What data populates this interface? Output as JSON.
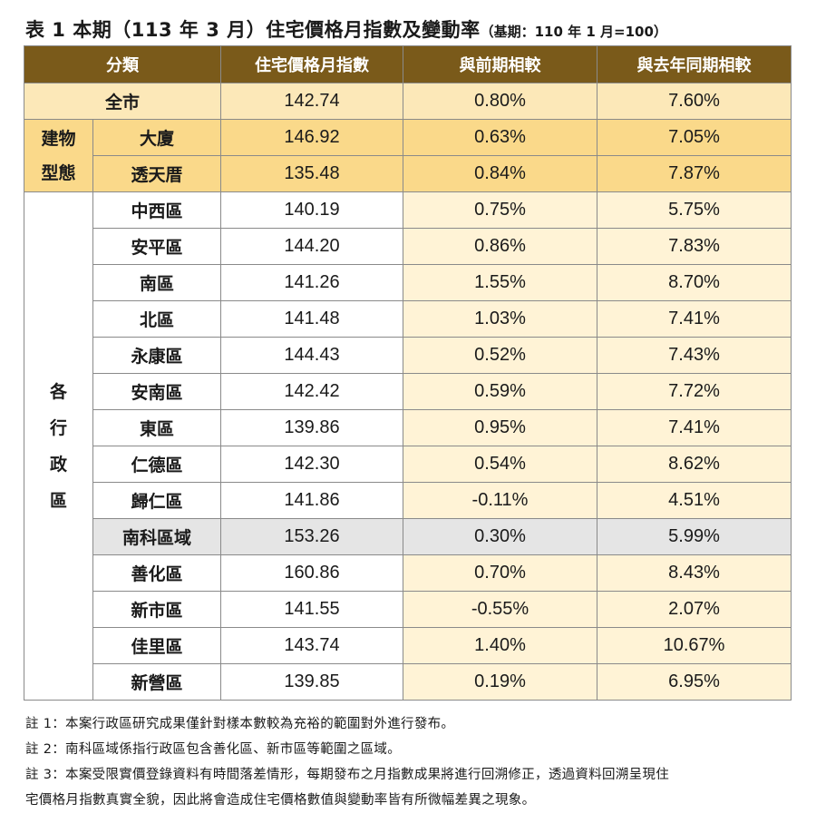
{
  "title": {
    "main": "表 1 本期（113 年 3 月）住宅價格月指數及變動率",
    "sub": "（基期：110 年 1 月=100）"
  },
  "table": {
    "headers": [
      "分類",
      "住宅價格月指數",
      "與前期相較",
      "與去年同期相較"
    ],
    "all_city": {
      "label": "全市",
      "index": "142.74",
      "mom": "0.80%",
      "yoy": "7.60%"
    },
    "building_group_label": "建物\n型態",
    "building_rows": [
      {
        "label": "大廈",
        "index": "146.92",
        "mom": "0.63%",
        "yoy": "7.05%"
      },
      {
        "label": "透天厝",
        "index": "135.48",
        "mom": "0.84%",
        "yoy": "7.87%"
      }
    ],
    "district_group_label": "各\n行\n政\n區",
    "district_rows": [
      {
        "label": "中西區",
        "index": "140.19",
        "mom": "0.75%",
        "yoy": "5.75%"
      },
      {
        "label": "安平區",
        "index": "144.20",
        "mom": "0.86%",
        "yoy": "7.83%"
      },
      {
        "label": "南區",
        "index": "141.26",
        "mom": "1.55%",
        "yoy": "8.70%"
      },
      {
        "label": "北區",
        "index": "141.48",
        "mom": "1.03%",
        "yoy": "7.41%"
      },
      {
        "label": "永康區",
        "index": "144.43",
        "mom": "0.52%",
        "yoy": "7.43%"
      },
      {
        "label": "安南區",
        "index": "142.42",
        "mom": "0.59%",
        "yoy": "7.72%"
      },
      {
        "label": "東區",
        "index": "139.86",
        "mom": "0.95%",
        "yoy": "7.41%"
      },
      {
        "label": "仁德區",
        "index": "142.30",
        "mom": "0.54%",
        "yoy": "8.62%"
      },
      {
        "label": "歸仁區",
        "index": "141.86",
        "mom": "-0.11%",
        "yoy": "4.51%"
      },
      {
        "label": "南科區域",
        "index": "153.26",
        "mom": "0.30%",
        "yoy": "5.99%"
      },
      {
        "label": "善化區",
        "index": "160.86",
        "mom": "0.70%",
        "yoy": "8.43%"
      },
      {
        "label": "新市區",
        "index": "141.55",
        "mom": "-0.55%",
        "yoy": "2.07%"
      },
      {
        "label": "佳里區",
        "index": "143.74",
        "mom": "1.40%",
        "yoy": "10.67%"
      },
      {
        "label": "新營區",
        "index": "139.85",
        "mom": "0.19%",
        "yoy": "6.95%"
      }
    ]
  },
  "notes": [
    "註 1：本案行政區研究成果僅針對樣本數較為充裕的範圍對外進行發布。",
    "註 2：南科區域係指行政區包含善化區、新市區等範圍之區域。",
    "註 3：本案受限實價登錄資料有時間落差情形，每期發布之月指數成果將進行回溯修正，透過資料回溯呈現住",
    "宅價格月指數真實全貌，因此將會造成住宅價格數值與變動率皆有所微幅差異之現象。"
  ],
  "colors": {
    "header_bg": "#7a5a1a",
    "all_city_bg": "#fce8b8",
    "building_bg": "#fad98a",
    "highlight_row_bg": "#e5e5e5",
    "change_col_bg": "#fff3d6"
  }
}
